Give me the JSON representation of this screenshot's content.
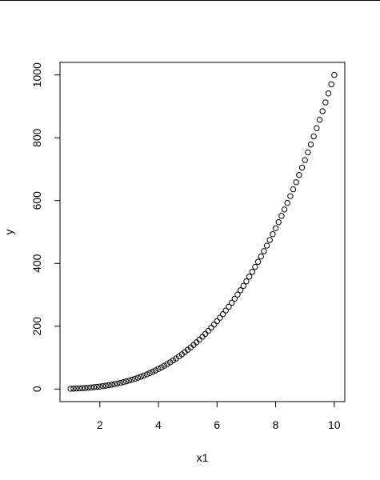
{
  "chart_data": {
    "type": "scatter",
    "title": "",
    "xlabel": "x1",
    "ylabel": "y",
    "x_ticks": [
      2,
      4,
      6,
      8,
      10
    ],
    "y_ticks": [
      0,
      200,
      400,
      600,
      800,
      1000
    ],
    "xlim": [
      0.64,
      10.36
    ],
    "ylim": [
      -40,
      1040
    ],
    "grid": false,
    "marker": "open-circle",
    "point_color": "#000000",
    "series": [
      {
        "x": [
          1.0,
          1.1,
          1.2,
          1.3,
          1.4,
          1.5,
          1.6,
          1.7,
          1.8,
          1.9,
          2.0,
          2.1,
          2.2,
          2.3,
          2.4,
          2.5,
          2.6,
          2.7,
          2.8,
          2.9,
          3.0,
          3.1,
          3.2,
          3.3,
          3.4,
          3.5,
          3.6,
          3.7,
          3.8,
          3.9,
          4.0,
          4.1,
          4.2,
          4.3,
          4.4,
          4.5,
          4.6,
          4.7,
          4.8,
          4.9,
          5.0,
          5.1,
          5.2,
          5.3,
          5.4,
          5.5,
          5.6,
          5.7,
          5.8,
          5.9,
          6.0,
          6.1,
          6.2,
          6.3,
          6.4,
          6.5,
          6.6,
          6.7,
          6.8,
          6.9,
          7.0,
          7.1,
          7.2,
          7.3,
          7.4,
          7.5,
          7.6,
          7.7,
          7.8,
          7.9,
          8.0,
          8.1,
          8.2,
          8.3,
          8.4,
          8.5,
          8.6,
          8.7,
          8.8,
          8.9,
          9.0,
          9.1,
          9.2,
          9.3,
          9.4,
          9.5,
          9.6,
          9.7,
          9.8,
          9.9,
          10.0
        ],
        "y": [
          1.0,
          1.331,
          1.728,
          2.197,
          2.744,
          3.375,
          4.096,
          4.913,
          5.832,
          6.859,
          8.0,
          9.261,
          10.648,
          12.167,
          13.824,
          15.625,
          17.576,
          19.683,
          21.952,
          24.389,
          27.0,
          29.791,
          32.768,
          35.937,
          39.304,
          42.875,
          46.656,
          50.653,
          54.872,
          59.319,
          64.0,
          68.921,
          74.088,
          79.507,
          85.184,
          91.125,
          97.336,
          103.823,
          110.592,
          117.649,
          125.0,
          132.651,
          140.608,
          148.877,
          157.464,
          166.375,
          175.616,
          185.193,
          195.112,
          205.379,
          216.0,
          226.981,
          238.328,
          250.047,
          262.144,
          274.625,
          287.496,
          300.763,
          314.432,
          328.509,
          343.0,
          357.911,
          373.248,
          389.017,
          405.224,
          421.875,
          438.976,
          456.533,
          474.552,
          493.039,
          512.0,
          531.441,
          551.368,
          571.787,
          592.704,
          614.125,
          636.056,
          658.503,
          681.472,
          704.969,
          729.0,
          753.571,
          778.688,
          804.357,
          830.584,
          857.375,
          884.736,
          912.673,
          941.192,
          970.299,
          1000.0
        ]
      }
    ]
  }
}
